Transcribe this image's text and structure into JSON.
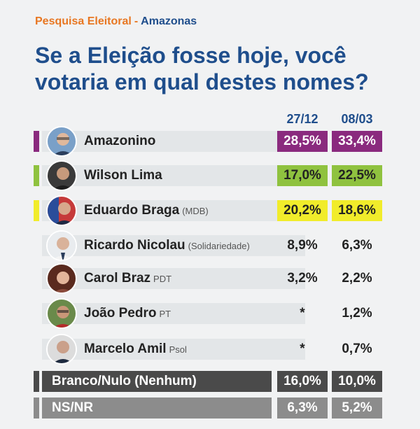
{
  "header": {
    "survey": "Pesquisa Eleitoral",
    "sep": "-",
    "region": "Amazonas"
  },
  "question": "Se a Eleição fosse hoje, você votaria em qual destes nomes?",
  "columns": [
    "27/12",
    "08/03"
  ],
  "colors": {
    "purple": "#8a2a7e",
    "green": "#8fc23f",
    "yellow": "#f1ec2b",
    "navy": "#1f4e8c",
    "dark": "#4a4a4a",
    "gray": "#8c8c8c",
    "orange": "#e87722"
  },
  "rows": [
    {
      "name": "Amazonino",
      "party": "",
      "v1": "28,5%",
      "v2": "33,4%"
    },
    {
      "name": "Wilson Lima",
      "party": "",
      "v1": "17,0%",
      "v2": "22,5%"
    },
    {
      "name": "Eduardo Braga",
      "party": "(MDB)",
      "v1": "20,2%",
      "v2": "18,6%"
    },
    {
      "name": "Ricardo Nicolau",
      "party": "(Solidariedade)",
      "v1": "8,9%",
      "v2": "6,3%"
    },
    {
      "name": "Carol Braz",
      "party": "PDT",
      "v1": "3,2%",
      "v2": "2,2%"
    },
    {
      "name": "João Pedro",
      "party": "PT",
      "v1": "*",
      "v2": "1,2%"
    },
    {
      "name": "Marcelo Amil",
      "party": "Psol",
      "v1": "*",
      "v2": "0,7%"
    },
    {
      "name": "Branco/Nulo (Nenhum)",
      "party": "",
      "v1": "16,0%",
      "v2": "10,0%"
    },
    {
      "name": "NS/NR",
      "party": "",
      "v1": "6,3%",
      "v2": "5,2%"
    }
  ],
  "chart_data": {
    "type": "table",
    "categories": [
      "Amazonino",
      "Wilson Lima",
      "Eduardo Braga",
      "Ricardo Nicolau",
      "Carol Braz",
      "João Pedro",
      "Marcelo Amil",
      "Branco/Nulo (Nenhum)",
      "NS/NR"
    ],
    "series": [
      {
        "name": "27/12",
        "values": [
          28.5,
          17.0,
          20.2,
          8.9,
          3.2,
          null,
          null,
          16.0,
          6.3
        ]
      },
      {
        "name": "08/03",
        "values": [
          33.4,
          22.5,
          18.6,
          6.3,
          2.2,
          1.2,
          0.7,
          10.0,
          5.2
        ]
      }
    ],
    "title": "Se a Eleição fosse hoje, você votaria em qual destes nomes?",
    "xlabel": "",
    "ylabel": ""
  }
}
